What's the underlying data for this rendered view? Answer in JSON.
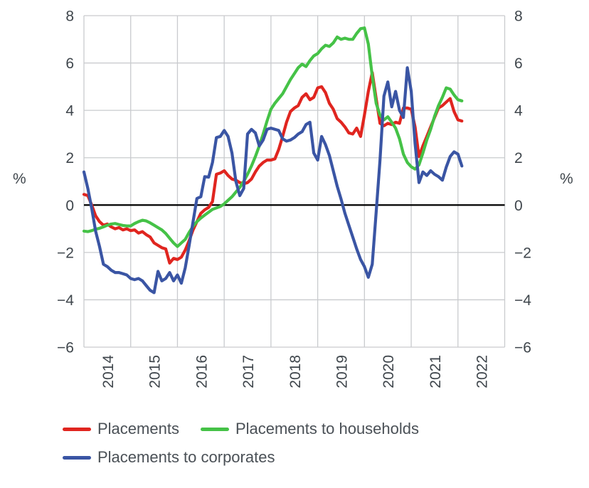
{
  "legend": {
    "items": [
      {
        "label": "Placements",
        "color": "#e0251f"
      },
      {
        "label": "Placements to households",
        "color": "#45c247"
      },
      {
        "label": "Placements to corporates",
        "color": "#3a55a4"
      }
    ]
  },
  "chart_data": {
    "type": "line",
    "title": "",
    "y_unit_left": "%",
    "y_unit_right": "%",
    "grid": true,
    "legend_position": "bottom",
    "ylim": [
      -6,
      8
    ],
    "y_ticks": [
      {
        "v": 8,
        "label": "8"
      },
      {
        "v": 6,
        "label": "6"
      },
      {
        "v": 4,
        "label": "4"
      },
      {
        "v": 2,
        "label": "2"
      },
      {
        "v": 0,
        "label": "0"
      },
      {
        "v": -2,
        "label": "−2"
      },
      {
        "v": -4,
        "label": "−4"
      },
      {
        "v": -6,
        "label": "−6"
      }
    ],
    "zero_line": true,
    "x_start": "2014-01",
    "x_step_months": 1,
    "x_grid_years": [
      2014,
      2015,
      2016,
      2017,
      2018,
      2019,
      2020,
      2021,
      2022,
      2023
    ],
    "x_tick_labels": [
      "2014",
      "2015",
      "2016",
      "2017",
      "2018",
      "2019",
      "2020",
      "2021",
      "2022"
    ],
    "style": {
      "grid_color": "#c9cbce",
      "zero_line_color": "#000000",
      "tick_text_color": "#3f464c",
      "line_width": 4.2
    },
    "series": [
      {
        "name": "Placements",
        "color": "#e0251f",
        "values": [
          0.45,
          0.4,
          0.0,
          -0.45,
          -0.7,
          -0.85,
          -0.8,
          -0.92,
          -1.0,
          -0.95,
          -1.05,
          -1.0,
          -1.08,
          -1.05,
          -1.18,
          -1.12,
          -1.25,
          -1.35,
          -1.6,
          -1.7,
          -1.8,
          -1.85,
          -2.45,
          -2.25,
          -2.3,
          -2.2,
          -1.9,
          -1.5,
          -1.05,
          -0.7,
          -0.35,
          -0.2,
          -0.1,
          0.15,
          1.3,
          1.35,
          1.45,
          1.25,
          1.1,
          1.05,
          0.95,
          0.9,
          0.95,
          1.1,
          1.4,
          1.65,
          1.8,
          1.9,
          1.9,
          1.95,
          2.35,
          2.9,
          3.5,
          3.95,
          4.1,
          4.2,
          4.55,
          4.7,
          4.45,
          4.55,
          4.95,
          5.0,
          4.75,
          4.3,
          4.05,
          3.65,
          3.5,
          3.3,
          3.05,
          3.0,
          3.25,
          2.9,
          3.8,
          4.8,
          5.6,
          4.5,
          3.45,
          3.35,
          3.45,
          3.4,
          3.5,
          3.45,
          4.1,
          4.1,
          4.05,
          3.3,
          2.05,
          2.5,
          2.9,
          3.3,
          3.7,
          4.1,
          4.2,
          4.35,
          4.5,
          3.95,
          3.6,
          3.55
        ]
      },
      {
        "name": "Placements to households",
        "color": "#45c247",
        "values": [
          -1.1,
          -1.12,
          -1.08,
          -1.02,
          -0.98,
          -0.92,
          -0.85,
          -0.8,
          -0.78,
          -0.82,
          -0.86,
          -0.88,
          -0.88,
          -0.78,
          -0.7,
          -0.64,
          -0.67,
          -0.75,
          -0.85,
          -0.95,
          -1.05,
          -1.2,
          -1.4,
          -1.6,
          -1.75,
          -1.6,
          -1.45,
          -1.15,
          -0.9,
          -0.7,
          -0.55,
          -0.42,
          -0.3,
          -0.18,
          -0.12,
          -0.06,
          0.05,
          0.2,
          0.35,
          0.55,
          0.75,
          1.0,
          1.3,
          1.65,
          2.05,
          2.5,
          3.0,
          3.55,
          4.05,
          4.3,
          4.5,
          4.7,
          5.0,
          5.3,
          5.55,
          5.8,
          5.95,
          5.85,
          6.1,
          6.3,
          6.4,
          6.6,
          6.75,
          6.7,
          6.85,
          7.1,
          7.0,
          7.05,
          7.0,
          7.0,
          7.25,
          7.45,
          7.48,
          6.8,
          5.45,
          4.3,
          3.8,
          3.6,
          3.73,
          3.5,
          3.25,
          2.8,
          2.15,
          1.8,
          1.62,
          1.52,
          1.7,
          2.2,
          2.75,
          3.2,
          3.75,
          4.2,
          4.55,
          4.95,
          4.9,
          4.65,
          4.45,
          4.4
        ]
      },
      {
        "name": "Placements to corporates",
        "color": "#3a55a4",
        "values": [
          1.4,
          0.7,
          -0.15,
          -1.1,
          -1.75,
          -2.5,
          -2.6,
          -2.75,
          -2.85,
          -2.85,
          -2.9,
          -2.95,
          -3.1,
          -3.15,
          -3.1,
          -3.2,
          -3.4,
          -3.6,
          -3.7,
          -2.8,
          -3.2,
          -3.1,
          -2.85,
          -3.2,
          -2.95,
          -3.3,
          -2.65,
          -1.7,
          -0.7,
          0.28,
          0.35,
          1.2,
          1.18,
          1.8,
          2.85,
          2.9,
          3.15,
          2.9,
          2.2,
          1.0,
          0.4,
          0.7,
          3.0,
          3.2,
          3.05,
          2.5,
          2.75,
          3.2,
          3.25,
          3.2,
          3.15,
          2.8,
          2.7,
          2.75,
          2.85,
          3.0,
          3.1,
          3.4,
          3.5,
          2.2,
          1.9,
          2.9,
          2.55,
          2.1,
          1.45,
          0.8,
          0.25,
          -0.35,
          -0.85,
          -1.35,
          -1.85,
          -2.3,
          -2.6,
          -3.05,
          -2.5,
          -0.3,
          1.9,
          4.6,
          5.2,
          4.15,
          4.8,
          4.0,
          3.7,
          5.8,
          4.8,
          2.6,
          0.95,
          1.4,
          1.25,
          1.45,
          1.3,
          1.2,
          1.05,
          1.6,
          2.05,
          2.25,
          2.15,
          1.65
        ]
      }
    ]
  }
}
